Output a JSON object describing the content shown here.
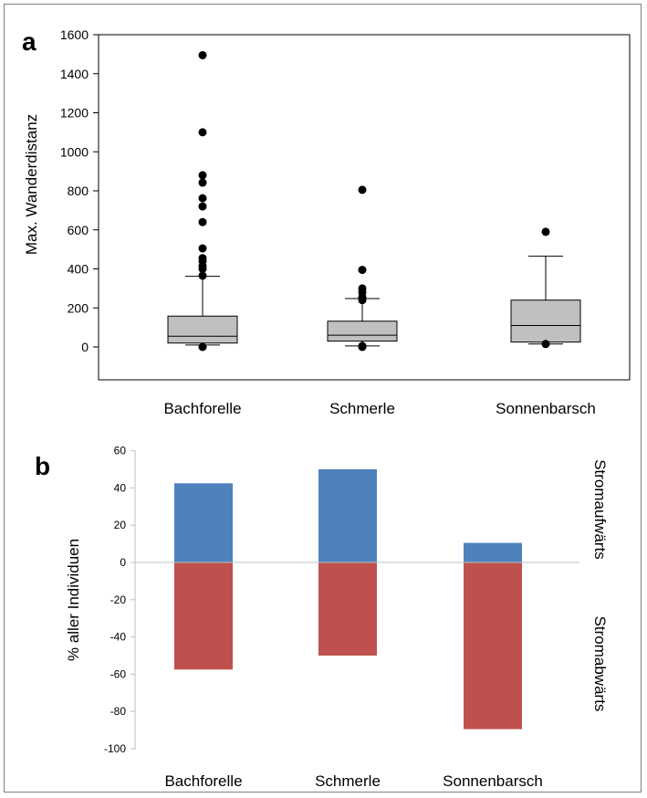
{
  "chart_data": [
    {
      "type": "box",
      "panel_label": "a",
      "ylabel": "Max. Wanderdistanz",
      "xlabel": "",
      "ylim": [
        -150,
        1600
      ],
      "yticks": [
        0,
        200,
        400,
        600,
        800,
        1000,
        1200,
        1400,
        1600
      ],
      "categories": [
        "Bachforelle",
        "Schmerle",
        "Sonnenbarsch"
      ],
      "boxes": [
        {
          "q1": 20,
          "median": 55,
          "q3": 158,
          "whisker_low": 10,
          "whisker_high": 362,
          "outliers": [
            0,
            365,
            400,
            415,
            440,
            455,
            505,
            640,
            720,
            762,
            842,
            880,
            1100,
            1495
          ]
        },
        {
          "q1": 30,
          "median": 60,
          "q3": 132,
          "whisker_low": 5,
          "whisker_high": 248,
          "outliers": [
            0,
            5,
            240,
            255,
            280,
            300,
            395,
            805
          ]
        },
        {
          "q1": 25,
          "median": 110,
          "q3": 240,
          "whisker_low": 15,
          "whisker_high": 465,
          "outliers": [
            15,
            590
          ]
        }
      ],
      "colors": {
        "box_fill": "#c0c0c0",
        "stroke": "#000000",
        "outlier": "#000000"
      },
      "grid": false
    },
    {
      "type": "bar",
      "panel_label": "b",
      "ylabel": "% aller Individuen",
      "xlabel": "",
      "ylim": [
        -100,
        60
      ],
      "yticks": [
        -100,
        -80,
        -60,
        -40,
        -20,
        0,
        20,
        40,
        60
      ],
      "categories": [
        "Bachforelle",
        "Schmerle",
        "Sonnenbarsch"
      ],
      "series": [
        {
          "name": "Stromaufwärts",
          "values": [
            42.5,
            50,
            10.5
          ],
          "color": "#4f81bd"
        },
        {
          "name": "Stromabwärts",
          "values": [
            -57.5,
            -50,
            -89.5
          ],
          "color": "#c0504d"
        }
      ],
      "stacked": true,
      "grid": false
    }
  ]
}
